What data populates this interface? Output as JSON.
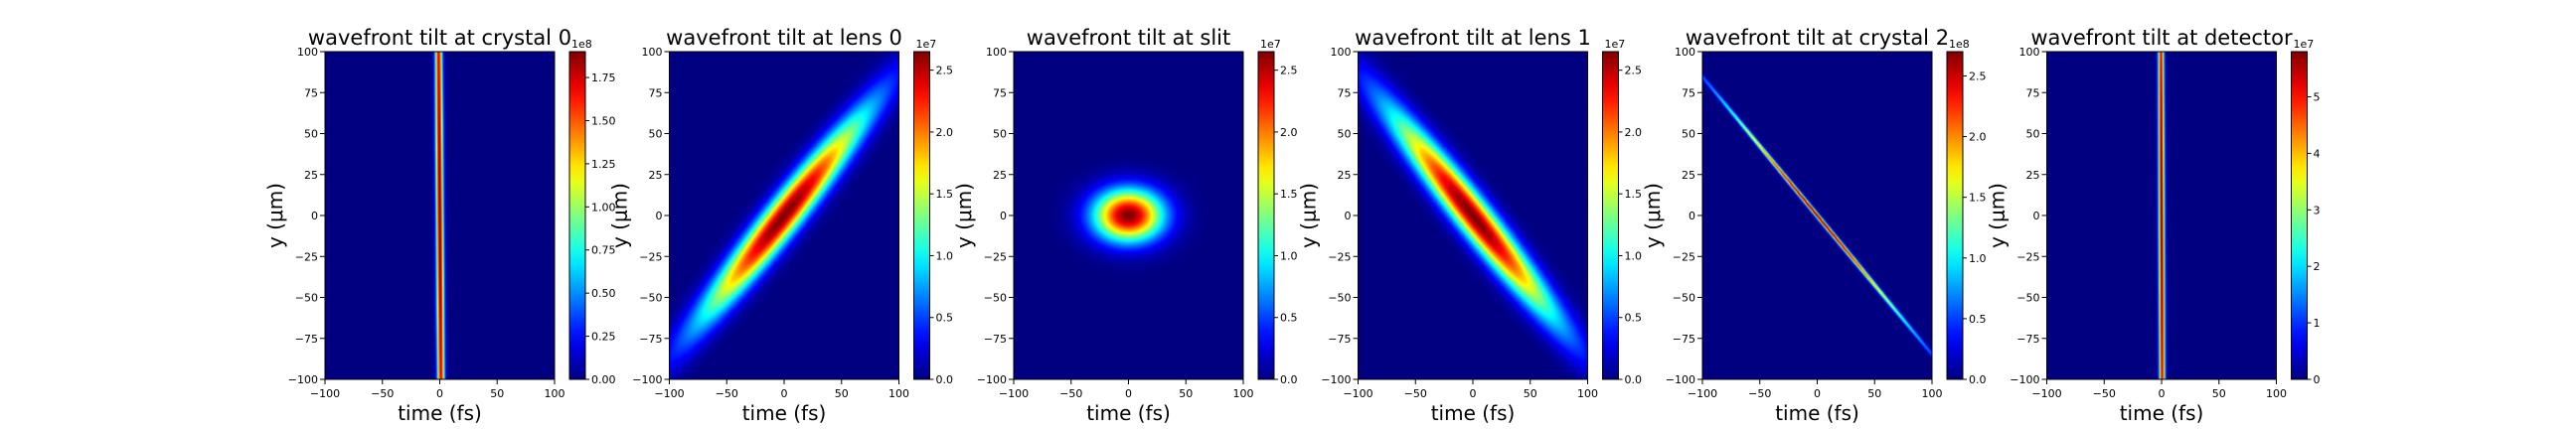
{
  "chart_data": [
    {
      "type": "heatmap",
      "title": "wavefront tilt at crystal 0",
      "xlabel": "time (fs)",
      "ylabel": "y (μm)",
      "xlim": [
        -100,
        100
      ],
      "ylim": [
        -100,
        100
      ],
      "xticks": [
        "−100",
        "−50",
        "0",
        "50",
        "100"
      ],
      "yticks": [
        "100",
        "75",
        "50",
        "25",
        "0",
        "−25",
        "−50",
        "−75",
        "−100"
      ],
      "colorbar": {
        "multiplier": "1e8",
        "ticks": [
          "0.00",
          "0.25",
          "0.50",
          "0.75",
          "1.00",
          "1.25",
          "1.50",
          "1.75"
        ],
        "max": 1.9
      },
      "blob": {
        "center": [
          0,
          0
        ],
        "sigma_x": 2.2,
        "sigma_y": 220,
        "tilt": -0.01
      }
    },
    {
      "type": "heatmap",
      "title": "wavefront tilt at lens 0",
      "xlabel": "time (fs)",
      "ylabel": "y (μm)",
      "xlim": [
        -100,
        100
      ],
      "ylim": [
        -100,
        100
      ],
      "xticks": [
        "−100",
        "−50",
        "0",
        "50",
        "100"
      ],
      "yticks": [
        "100",
        "75",
        "50",
        "25",
        "0",
        "−25",
        "−50",
        "−75",
        "−100"
      ],
      "colorbar": {
        "multiplier": "1e7",
        "ticks": [
          "0.0",
          "0.5",
          "1.0",
          "1.5",
          "2.0",
          "2.5"
        ],
        "max": 2.65
      },
      "blob": {
        "center": [
          0,
          0
        ],
        "sigma_x": 13,
        "sigma_y": 44,
        "tilt": 1.1
      }
    },
    {
      "type": "heatmap",
      "title": "wavefront tilt at slit",
      "xlabel": "time (fs)",
      "ylabel": "y (μm)",
      "xlim": [
        -100,
        100
      ],
      "ylim": [
        -100,
        100
      ],
      "xticks": [
        "−100",
        "−50",
        "0",
        "50",
        "100"
      ],
      "yticks": [
        "100",
        "75",
        "50",
        "25",
        "0",
        "−25",
        "−50",
        "−75",
        "−100"
      ],
      "colorbar": {
        "multiplier": "1e7",
        "ticks": [
          "0.0",
          "0.5",
          "1.0",
          "1.5",
          "2.0",
          "2.5"
        ],
        "max": 2.65
      },
      "blob": {
        "center": [
          0,
          0
        ],
        "sigma_x": 21,
        "sigma_y": 11,
        "tilt": 0
      }
    },
    {
      "type": "heatmap",
      "title": "wavefront tilt at lens 1",
      "xlabel": "time (fs)",
      "ylabel": "y (μm)",
      "xlim": [
        -100,
        100
      ],
      "ylim": [
        -100,
        100
      ],
      "xticks": [
        "−100",
        "−50",
        "0",
        "50",
        "100"
      ],
      "yticks": [
        "100",
        "75",
        "50",
        "25",
        "0",
        "−25",
        "−50",
        "−75",
        "−100"
      ],
      "colorbar": {
        "multiplier": "1e7",
        "ticks": [
          "0.0",
          "0.5",
          "1.0",
          "1.5",
          "2.0",
          "2.5"
        ],
        "max": 2.65
      },
      "blob": {
        "center": [
          0,
          0
        ],
        "sigma_x": 13,
        "sigma_y": 44,
        "tilt": -1.1
      }
    },
    {
      "type": "heatmap",
      "title": "wavefront tilt at crystal 2",
      "xlabel": "time (fs)",
      "ylabel": "y (μm)",
      "xlim": [
        -100,
        100
      ],
      "ylim": [
        -100,
        100
      ],
      "xticks": [
        "−100",
        "−50",
        "0",
        "50",
        "100"
      ],
      "yticks": [
        "100",
        "75",
        "50",
        "25",
        "0",
        "−25",
        "−50",
        "−75",
        "−100"
      ],
      "colorbar": {
        "multiplier": "1e8",
        "ticks": [
          "0.0",
          "0.5",
          "1.0",
          "1.5",
          "2.0",
          "2.5"
        ],
        "max": 2.7
      },
      "blob": {
        "center": [
          0,
          0
        ],
        "sigma_x": 1.6,
        "sigma_y": 48,
        "tilt": -1.18
      }
    },
    {
      "type": "heatmap",
      "title": "wavefront tilt at detector",
      "xlabel": "time (fs)",
      "ylabel": "y (μm)",
      "xlim": [
        -100,
        100
      ],
      "ylim": [
        -100,
        100
      ],
      "xticks": [
        "−100",
        "−50",
        "0",
        "50",
        "100"
      ],
      "yticks": [
        "100",
        "75",
        "50",
        "25",
        "0",
        "−25",
        "−50",
        "−75",
        "−100"
      ],
      "colorbar": {
        "multiplier": "1e7",
        "ticks": [
          "0",
          "1",
          "2",
          "3",
          "4",
          "5"
        ],
        "max": 5.8
      },
      "blob": {
        "center": [
          0,
          0
        ],
        "sigma_x": 1.8,
        "sigma_y": 220,
        "tilt": -0.005
      }
    }
  ]
}
